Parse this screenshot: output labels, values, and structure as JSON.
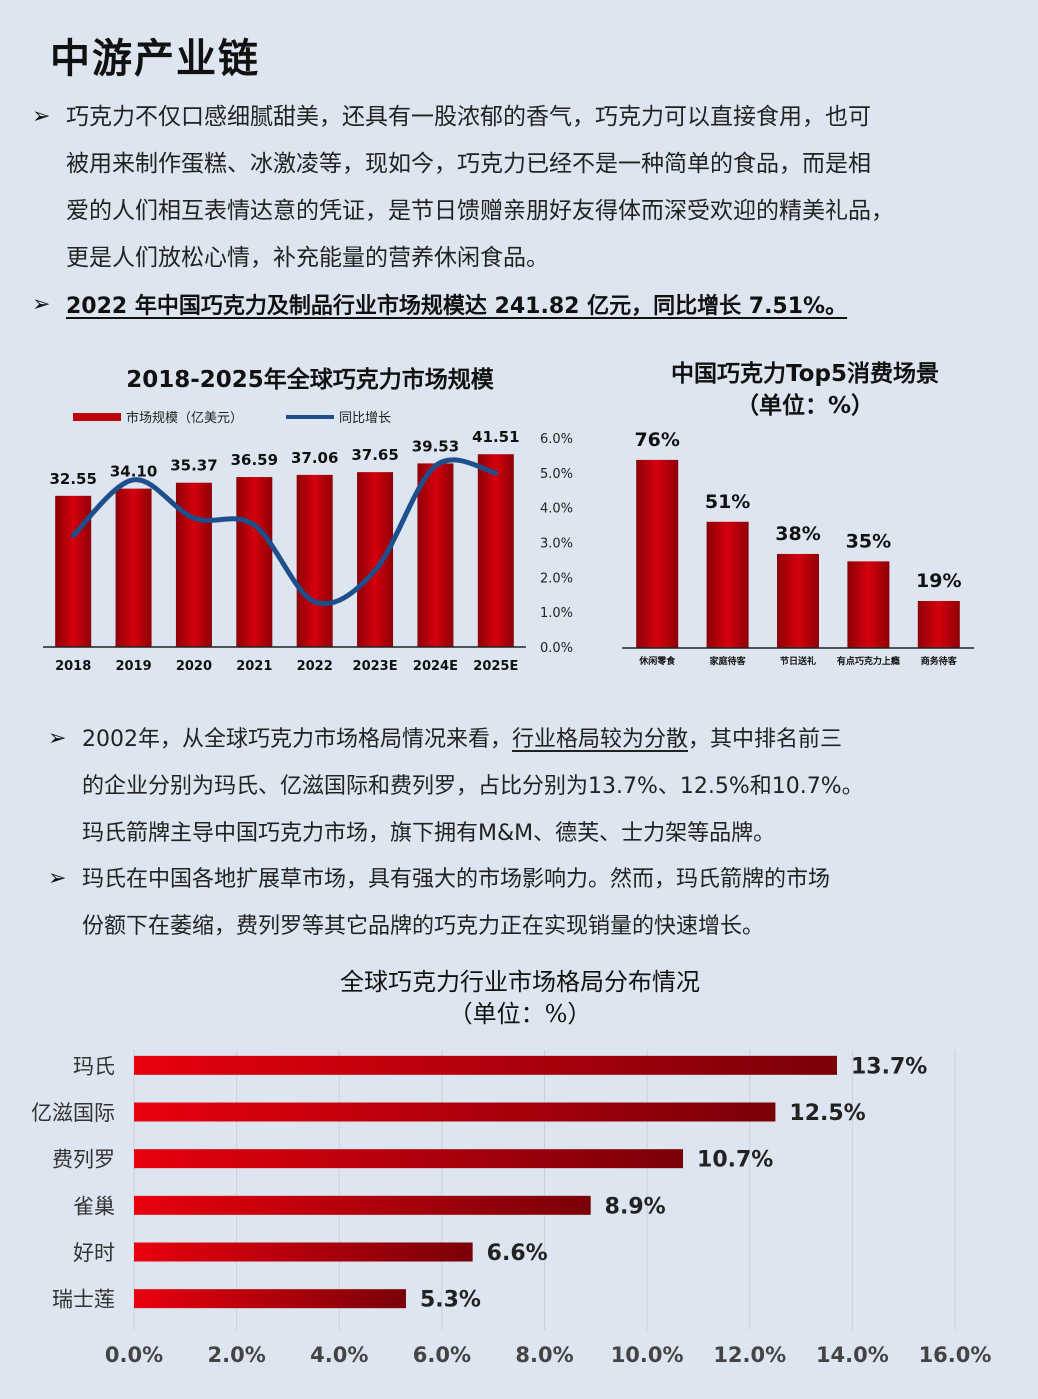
{
  "page": {
    "title": "中游产业链",
    "para1": "巧克力不仅口感细腻甜美，还具有一股浓郁的香气，巧克力可以直接食用，也可被用来制作蛋糕、冰激凌等，现如今，巧克力已经不是一种简单的食品，而是相爱的人们相互表情达意的凭证，是节日馈赠亲朋好友得体而深受欢迎的精美礼品，更是人们放松心情，补充能量的营养休闲食品。",
    "para1_lines": [
      "巧克力不仅口感细腻甜美，还具有一股浓郁的香气，巧克力可以直接食用，也可",
      "被用来制作蛋糕、冰激凌等，现如今，巧克力已经不是一种简单的食品，而是相",
      "爱的人们相互表情达意的凭证，是节日馈赠亲朋好友得体而深受欢迎的精美礼品，",
      "更是人们放松心情，补充能量的营养休闲食品。"
    ],
    "para2": "2022 年中国巧克力及制品行业市场规模达 241.82 亿元，同比增长 7.51%。",
    "para3_lines": [
      "2002年，从全球巧克力市场格局情况来看，",
      "行业格局较为分散",
      "，其中排名前三",
      "的企业分别为玛氏、亿滋国际和费列罗，占比分别为13.7%、12.5%和10.7%。",
      "玛氏箭牌主导中国巧克力市场，旗下拥有M&M、德芙、士力架等品牌。"
    ],
    "para4_lines": [
      "玛氏在中国各地扩展草市场，具有强大的市场影响力。然而，玛氏箭牌的市场",
      "份额下在萎缩，费列罗等其它品牌的巧克力正在实现销量的快速增长。"
    ],
    "bullet_symbol": "➢"
  },
  "chart_data": [
    {
      "type": "bar",
      "title": "2018-2025年全球巧克力市场规模",
      "categories": [
        "2018",
        "2019",
        "2020",
        "2021",
        "2022",
        "2023E",
        "2024E",
        "2025E"
      ],
      "series": [
        {
          "name": "市场规模（亿美元）",
          "type": "bar",
          "values": [
            32.55,
            34.1,
            35.37,
            36.59,
            37.06,
            37.65,
            39.53,
            41.51
          ],
          "labels": [
            "32.55",
            "34.10",
            "35.37",
            "36.59",
            "37.06",
            "37.65",
            "39.53",
            "41.51"
          ]
        },
        {
          "name": "同比增长",
          "type": "line",
          "axis": "right",
          "values": [
            3.2,
            4.8,
            3.7,
            3.5,
            1.3,
            2.2,
            5.2,
            5.0
          ]
        }
      ],
      "y2_ticks": [
        "0.0%",
        "1.0%",
        "2.0%",
        "3.0%",
        "4.0%",
        "5.0%",
        "6.0%"
      ],
      "y2lim": [
        0,
        6
      ],
      "bar_color": "#c0000b",
      "line_color": "#1f4e8c",
      "legend_position": "top-left"
    },
    {
      "type": "bar",
      "title": "中国巧克力Top5消费场景",
      "subtitle": "（单位：%）",
      "categories": [
        "休闲零食",
        "家庭待客",
        "节日送礼",
        "有点巧克力上瘾",
        "商务待客"
      ],
      "values": [
        76,
        51,
        38,
        35,
        19
      ],
      "labels": [
        "76%",
        "51%",
        "38%",
        "35%",
        "19%"
      ],
      "ylim": [
        0,
        80
      ],
      "bar_color": "#c0000b"
    },
    {
      "type": "bar",
      "orientation": "horizontal",
      "title": "全球巧克力行业市场格局分布情况",
      "subtitle": "（单位：%）",
      "categories": [
        "玛氏",
        "亿滋国际",
        "费列罗",
        "雀巢",
        "好时",
        "瑞士莲"
      ],
      "values": [
        13.7,
        12.5,
        10.7,
        8.9,
        6.6,
        5.3
      ],
      "labels": [
        "13.7%",
        "12.5%",
        "10.7%",
        "8.9%",
        "6.6%",
        "5.3%"
      ],
      "x_ticks": [
        "0.0%",
        "2.0%",
        "4.0%",
        "6.0%",
        "8.0%",
        "10.0%",
        "12.0%",
        "14.0%",
        "16.0%"
      ],
      "xlim": [
        0,
        16
      ],
      "grid": true,
      "bar_color_start": "#e8000e",
      "bar_color_end": "#7a0008"
    }
  ]
}
